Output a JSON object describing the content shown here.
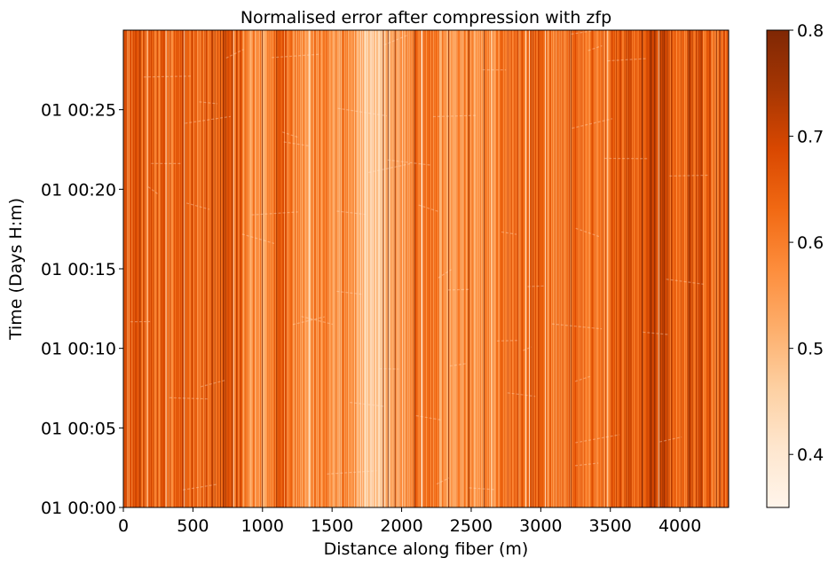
{
  "chart_data": {
    "type": "heatmap",
    "title": "Normalised error after compression with zfp",
    "xlabel": "Distance along fiber (m)",
    "ylabel": "Time (Days H:m)",
    "xlim": [
      0,
      4350
    ],
    "ylim_minutes": [
      0,
      30
    ],
    "x_ticks": [
      0,
      500,
      1000,
      1500,
      2000,
      2500,
      3000,
      3500,
      4000
    ],
    "x_tick_labels": [
      "0",
      "500",
      "1000",
      "1500",
      "2000",
      "2500",
      "3000",
      "3500",
      "4000"
    ],
    "y_ticks_minutes": [
      0,
      5,
      10,
      15,
      20,
      25
    ],
    "y_tick_labels": [
      "01 00:00",
      "01 00:05",
      "01 00:10",
      "01 00:15",
      "01 00:20",
      "01 00:25"
    ],
    "colorbar": {
      "colormap": "Oranges",
      "range": [
        0.35,
        0.8
      ],
      "ticks": [
        0.4,
        0.5,
        0.6,
        0.7,
        0.8
      ],
      "tick_labels": [
        "0.4",
        "0.5",
        "0.6",
        "0.7",
        "0.8"
      ]
    },
    "column_profile": {
      "distance_m": [
        0,
        100,
        200,
        300,
        400,
        500,
        600,
        700,
        800,
        900,
        1000,
        1100,
        1200,
        1300,
        1400,
        1500,
        1600,
        1700,
        1800,
        1900,
        2000,
        2100,
        2200,
        2300,
        2400,
        2500,
        2600,
        2700,
        2800,
        2900,
        3000,
        3100,
        3200,
        3300,
        3400,
        3500,
        3600,
        3700,
        3800,
        3900,
        4000,
        4100,
        4200,
        4350
      ],
      "value": [
        0.6,
        0.66,
        0.65,
        0.62,
        0.66,
        0.64,
        0.62,
        0.7,
        0.67,
        0.58,
        0.55,
        0.63,
        0.6,
        0.55,
        0.58,
        0.56,
        0.57,
        0.5,
        0.45,
        0.49,
        0.55,
        0.6,
        0.6,
        0.56,
        0.55,
        0.55,
        0.58,
        0.6,
        0.62,
        0.64,
        0.63,
        0.6,
        0.62,
        0.63,
        0.61,
        0.64,
        0.66,
        0.65,
        0.72,
        0.66,
        0.64,
        0.66,
        0.63,
        0.62
      ]
    }
  }
}
